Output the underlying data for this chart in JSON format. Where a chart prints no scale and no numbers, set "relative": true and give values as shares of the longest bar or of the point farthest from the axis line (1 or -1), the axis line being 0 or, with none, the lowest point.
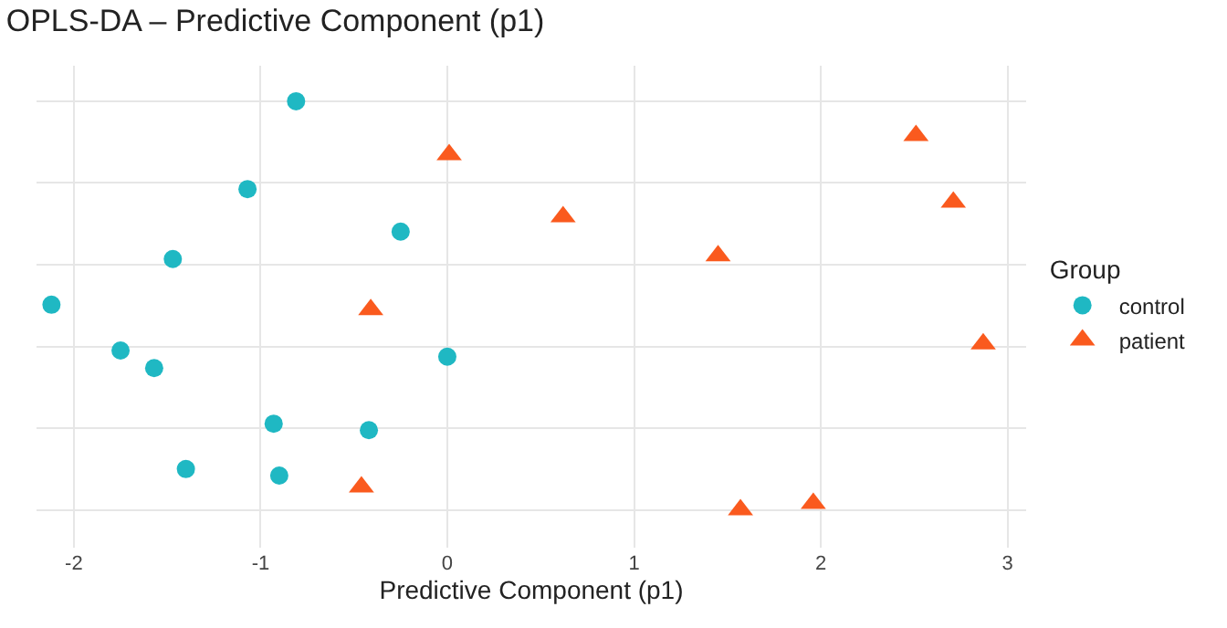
{
  "chart_data": {
    "type": "scatter",
    "title": "OPLS-DA – Predictive Component (p1)",
    "xlabel": "Predictive Component (p1)",
    "legend_title": "Group",
    "xlim": [
      -2.2,
      3.1
    ],
    "xticks": [
      -2,
      -1,
      0,
      1,
      2,
      3
    ],
    "relative": true,
    "grid": true,
    "legend": "right",
    "tick_labels": "x",
    "series": [
      {
        "name": "control",
        "color": "#1fb8c3",
        "marker": "circle",
        "x": [
          -0.81,
          -1.07,
          -0.25,
          -1.47,
          -2.12,
          -1.75,
          -1.57,
          0.0,
          -0.93,
          -0.42,
          -1.4,
          -0.9
        ],
        "values": [
          1.0,
          0.785,
          0.681,
          0.614,
          0.502,
          0.39,
          0.347,
          0.375,
          0.211,
          0.195,
          0.1,
          0.084
        ]
      },
      {
        "name": "patient",
        "color": "#fa5a1e",
        "marker": "triangle",
        "x": [
          2.51,
          0.01,
          2.71,
          0.62,
          1.45,
          -0.41,
          2.87,
          -0.46,
          1.96,
          1.57
        ],
        "values": [
          0.916,
          0.869,
          0.753,
          0.717,
          0.622,
          0.49,
          0.406,
          0.056,
          0.016,
          0.0
        ]
      }
    ]
  }
}
